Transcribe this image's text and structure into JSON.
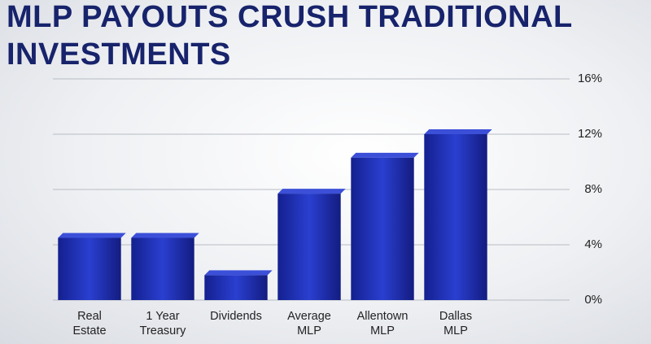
{
  "chart_data": {
    "type": "bar",
    "title": "MLP PAYOUTS CRUSH TRADITIONAL INVESTMENTS",
    "categories": [
      "Real Estate",
      "1 Year Treasury",
      "Dividends",
      "Average MLP",
      "Allentown MLP",
      "Dallas MLP"
    ],
    "values": [
      4.5,
      4.5,
      1.8,
      7.7,
      10.3,
      12.0
    ],
    "color": "#1f2fb0",
    "ylim": [
      0,
      16
    ],
    "yticks": [
      {
        "value": 0,
        "label": "0%"
      },
      {
        "value": 4,
        "label": "4%"
      },
      {
        "value": 8,
        "label": "8%"
      },
      {
        "value": 12,
        "label": "12%"
      },
      {
        "value": 16,
        "label": "16%"
      }
    ],
    "grid": true
  }
}
